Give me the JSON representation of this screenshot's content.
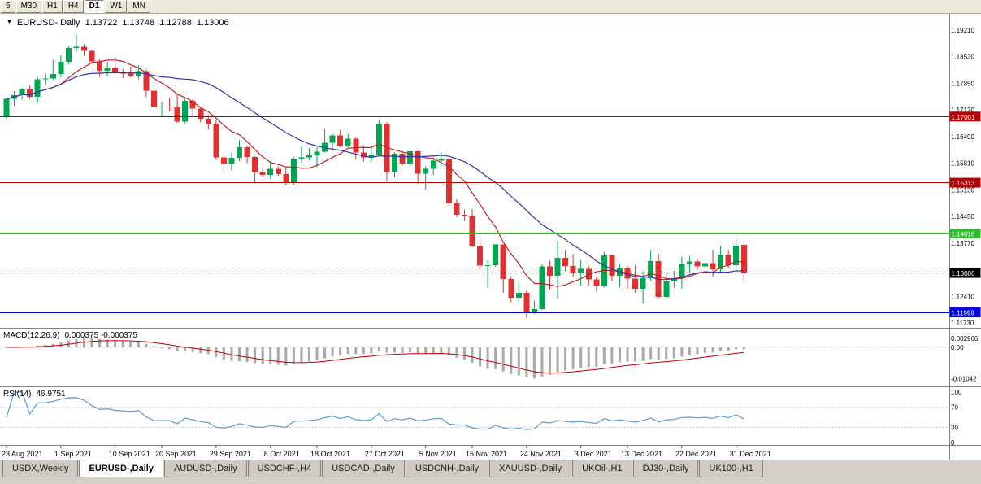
{
  "toolbar": {
    "timeframes": [
      "5",
      "M30",
      "H1",
      "H4",
      "D1",
      "W1",
      "MN"
    ],
    "active": "D1"
  },
  "icons": {
    "title_marker": "▼"
  },
  "chart": {
    "title_symbol": "EURUSD-,Daily",
    "ohlc": {
      "open": "1.13722",
      "high": "1.13748",
      "low": "1.12788",
      "close": "1.13006"
    },
    "price_axis_labels": [
      "1.19210",
      "1.18530",
      "1.17850",
      "1.17170",
      "1.16490",
      "1.15810",
      "1.15130",
      "1.14450",
      "1.13770",
      "1.12410",
      "1.11730"
    ],
    "hlines": [
      {
        "price": 1.17001,
        "label": "1.17001",
        "color": "#bb0000",
        "width": 1
      },
      {
        "price": 1.15313,
        "label": "1.15313",
        "color": "#bb0000",
        "width": 1
      },
      {
        "price": 1.14016,
        "label": "1.14016",
        "color": "#2db82d",
        "width": 2
      },
      {
        "price": 1.11999,
        "label": "1.11999",
        "color": "#0000dd",
        "width": 2
      }
    ],
    "current_price": {
      "value": 1.13006,
      "label": "1.13006",
      "color": "#000000"
    }
  },
  "indicators": {
    "macd": {
      "label": "MACD(12,26,9)",
      "values": "0.000375 -0.000375",
      "fast": 12,
      "slow": 26,
      "signal": 9,
      "axis_labels": [
        "0.002966",
        "0.00",
        "-0.01042"
      ]
    },
    "rsi": {
      "label": "RSI(14)",
      "value": "46.9751",
      "period": 14,
      "axis_labels": [
        "100",
        "70",
        "30",
        "0"
      ],
      "levels": [
        70,
        30
      ]
    }
  },
  "colors": {
    "up_candle": "#00a651",
    "down_candle": "#e03030",
    "ma_fast": "#c22222",
    "ma_slow": "#3333aa",
    "macd_hist": "#a9a9a9",
    "macd_signal": "#c00000",
    "rsi_line": "#5b9bd5",
    "axis_text": "#000000",
    "separator": "#808080"
  },
  "chart_data": {
    "type": "candlestick",
    "title": "EURUSD-,Daily",
    "symbol": "EURUSD",
    "timeframe": "Daily",
    "y_range": [
      1.1173,
      1.1925
    ],
    "x_tick_labels": [
      "23 Aug 2021",
      "1 Sep 2021",
      "10 Sep 2021",
      "20 Sep 2021",
      "29 Sep 2021",
      "8 Oct 2021",
      "18 Oct 2021",
      "27 Oct 2021",
      "5 Nov 2021",
      "15 Nov 2021",
      "24 Nov 2021",
      "3 Dec 2021",
      "13 Dec 2021",
      "22 Dec 2021",
      "31 Dec 2021"
    ],
    "x_tick_indices": [
      0,
      7,
      14,
      20,
      27,
      34,
      40,
      47,
      54,
      60,
      67,
      74,
      80,
      87,
      94
    ],
    "overlays": [
      {
        "name": "ma-fast",
        "period": 8,
        "color_key": "ma_fast"
      },
      {
        "name": "ma-slow",
        "period": 21,
        "color_key": "ma_slow"
      }
    ],
    "candles_ohlc": [
      [
        1.17,
        1.1748,
        1.1693,
        1.1745
      ],
      [
        1.1745,
        1.1765,
        1.1727,
        1.1755
      ],
      [
        1.1755,
        1.1774,
        1.1743,
        1.177
      ],
      [
        1.177,
        1.1779,
        1.1745,
        1.1751
      ],
      [
        1.1751,
        1.1802,
        1.1735,
        1.1795
      ],
      [
        1.1795,
        1.181,
        1.1782,
        1.1797
      ],
      [
        1.1797,
        1.1845,
        1.1794,
        1.1809
      ],
      [
        1.1809,
        1.1857,
        1.18,
        1.184
      ],
      [
        1.184,
        1.188,
        1.1834,
        1.1875
      ],
      [
        1.1875,
        1.1909,
        1.1865,
        1.1878
      ],
      [
        1.1878,
        1.1885,
        1.1855,
        1.1868
      ],
      [
        1.1868,
        1.187,
        1.1838,
        1.1841
      ],
      [
        1.1841,
        1.1846,
        1.1802,
        1.1817
      ],
      [
        1.1817,
        1.184,
        1.1805,
        1.1825
      ],
      [
        1.1825,
        1.1851,
        1.181,
        1.1814
      ],
      [
        1.1814,
        1.1822,
        1.1798,
        1.181
      ],
      [
        1.181,
        1.1828,
        1.18,
        1.1805
      ],
      [
        1.1805,
        1.1832,
        1.1795,
        1.1816
      ],
      [
        1.1816,
        1.1821,
        1.175,
        1.1766
      ],
      [
        1.1766,
        1.1788,
        1.1724,
        1.1725
      ],
      [
        1.1725,
        1.1738,
        1.17,
        1.1726
      ],
      [
        1.1726,
        1.1749,
        1.1715,
        1.1725
      ],
      [
        1.1725,
        1.1756,
        1.1684,
        1.1687
      ],
      [
        1.1687,
        1.175,
        1.1683,
        1.174
      ],
      [
        1.174,
        1.1745,
        1.1701,
        1.172
      ],
      [
        1.172,
        1.1722,
        1.1685,
        1.1695
      ],
      [
        1.1695,
        1.1705,
        1.1668,
        1.1682
      ],
      [
        1.1682,
        1.169,
        1.1589,
        1.1596
      ],
      [
        1.1596,
        1.1611,
        1.1563,
        1.158
      ],
      [
        1.158,
        1.1608,
        1.1562,
        1.1595
      ],
      [
        1.1595,
        1.164,
        1.1587,
        1.1622
      ],
      [
        1.1622,
        1.1625,
        1.1581,
        1.1597
      ],
      [
        1.1597,
        1.16,
        1.1529,
        1.1558
      ],
      [
        1.1558,
        1.1572,
        1.1546,
        1.1551
      ],
      [
        1.1551,
        1.1586,
        1.1541,
        1.1567
      ],
      [
        1.1567,
        1.1573,
        1.1549,
        1.1553
      ],
      [
        1.1553,
        1.157,
        1.1524,
        1.153
      ],
      [
        1.153,
        1.1597,
        1.1525,
        1.1593
      ],
      [
        1.1593,
        1.1624,
        1.1583,
        1.1596
      ],
      [
        1.1596,
        1.1619,
        1.1588,
        1.1601
      ],
      [
        1.1601,
        1.1622,
        1.1571,
        1.161
      ],
      [
        1.161,
        1.1669,
        1.1608,
        1.1633
      ],
      [
        1.1633,
        1.1658,
        1.1617,
        1.1652
      ],
      [
        1.1652,
        1.1667,
        1.1622,
        1.1624
      ],
      [
        1.1624,
        1.1656,
        1.162,
        1.1644
      ],
      [
        1.1644,
        1.1648,
        1.159,
        1.1608
      ],
      [
        1.1608,
        1.1627,
        1.1585,
        1.1596
      ],
      [
        1.1596,
        1.1626,
        1.1583,
        1.1603
      ],
      [
        1.1603,
        1.1692,
        1.1601,
        1.1682
      ],
      [
        1.1682,
        1.1686,
        1.1535,
        1.1558
      ],
      [
        1.1558,
        1.1609,
        1.1545,
        1.1605
      ],
      [
        1.1605,
        1.1612,
        1.1575,
        1.158
      ],
      [
        1.158,
        1.1616,
        1.1572,
        1.1611
      ],
      [
        1.1611,
        1.1616,
        1.1528,
        1.1554
      ],
      [
        1.1554,
        1.1573,
        1.1513,
        1.1567
      ],
      [
        1.1567,
        1.1596,
        1.1551,
        1.1588
      ],
      [
        1.1588,
        1.1608,
        1.1576,
        1.1593
      ],
      [
        1.1593,
        1.1595,
        1.1473,
        1.1478
      ],
      [
        1.1478,
        1.1489,
        1.1443,
        1.1449
      ],
      [
        1.1449,
        1.1463,
        1.1433,
        1.1445
      ],
      [
        1.1445,
        1.1464,
        1.1366,
        1.1369
      ],
      [
        1.1369,
        1.1386,
        1.131,
        1.1319
      ],
      [
        1.1319,
        1.1333,
        1.1263,
        1.132
      ],
      [
        1.132,
        1.1374,
        1.1316,
        1.1373
      ],
      [
        1.1373,
        1.1374,
        1.125,
        1.1285
      ],
      [
        1.1285,
        1.1292,
        1.1226,
        1.1237
      ],
      [
        1.1237,
        1.1276,
        1.1227,
        1.125
      ],
      [
        1.125,
        1.1256,
        1.1186,
        1.1199
      ],
      [
        1.1199,
        1.123,
        1.1196,
        1.1208
      ],
      [
        1.1208,
        1.1323,
        1.1206,
        1.1317
      ],
      [
        1.1317,
        1.1332,
        1.1258,
        1.1294
      ],
      [
        1.1294,
        1.1383,
        1.1235,
        1.1339
      ],
      [
        1.1339,
        1.136,
        1.1305,
        1.1318
      ],
      [
        1.1318,
        1.1348,
        1.1291,
        1.1301
      ],
      [
        1.1301,
        1.1334,
        1.1266,
        1.1311
      ],
      [
        1.1311,
        1.132,
        1.1267,
        1.1284
      ],
      [
        1.1284,
        1.129,
        1.1253,
        1.1266
      ],
      [
        1.1266,
        1.1355,
        1.1264,
        1.1345
      ],
      [
        1.1345,
        1.1348,
        1.128,
        1.1294
      ],
      [
        1.1294,
        1.1324,
        1.1264,
        1.1313
      ],
      [
        1.1313,
        1.1319,
        1.126,
        1.1286
      ],
      [
        1.1286,
        1.132,
        1.1251,
        1.126
      ],
      [
        1.126,
        1.1304,
        1.1222,
        1.1287
      ],
      [
        1.1287,
        1.136,
        1.128,
        1.1331
      ],
      [
        1.1331,
        1.1349,
        1.1236,
        1.124
      ],
      [
        1.124,
        1.1303,
        1.1236,
        1.1279
      ],
      [
        1.1279,
        1.1306,
        1.1262,
        1.1287
      ],
      [
        1.1287,
        1.1342,
        1.1261,
        1.1324
      ],
      [
        1.1324,
        1.1344,
        1.13,
        1.133
      ],
      [
        1.133,
        1.1338,
        1.1308,
        1.1317
      ],
      [
        1.1317,
        1.1336,
        1.1304,
        1.1326
      ],
      [
        1.1326,
        1.136,
        1.1291,
        1.131
      ],
      [
        1.131,
        1.137,
        1.13,
        1.1348
      ],
      [
        1.1348,
        1.136,
        1.1312,
        1.1321
      ],
      [
        1.1321,
        1.1386,
        1.1303,
        1.137
      ],
      [
        1.13722,
        1.13748,
        1.12788,
        1.13006
      ]
    ]
  },
  "tabs": {
    "items": [
      {
        "label": "USDX,Weekly",
        "active": false
      },
      {
        "label": "EURUSD-,Daily",
        "active": true
      },
      {
        "label": "AUDUSD-,Daily",
        "active": false
      },
      {
        "label": "USDCHF-,H4",
        "active": false
      },
      {
        "label": "USDCAD-,Daily",
        "active": false
      },
      {
        "label": "USDCNH-,Daily",
        "active": false
      },
      {
        "label": "XAUUSD-,Daily",
        "active": false
      },
      {
        "label": "UKOil-,H1",
        "active": false
      },
      {
        "label": "DJ30-,Daily",
        "active": false
      },
      {
        "label": "UK100-,H1",
        "active": false
      }
    ]
  }
}
